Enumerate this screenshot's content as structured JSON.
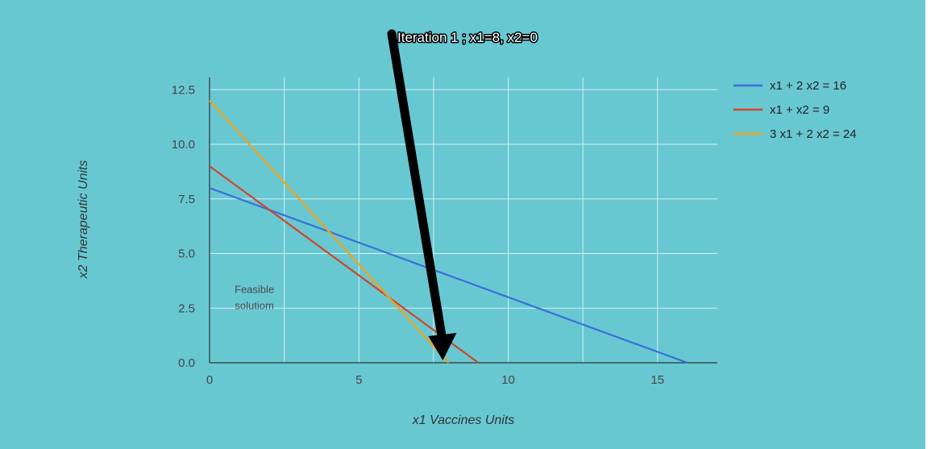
{
  "chart_data": {
    "type": "line",
    "xlabel": "x1 Vaccines Units",
    "ylabel": "x2 Therapeutic Units",
    "xlim": [
      0,
      17
    ],
    "ylim": [
      0,
      13
    ],
    "x_ticks": [
      "0",
      "5",
      "10",
      "15"
    ],
    "y_ticks": [
      "0.0",
      "2.5",
      "5.0",
      "7.5",
      "10.0",
      "12.5"
    ],
    "grid": true,
    "legend_position": "top-right",
    "series": [
      {
        "name": "x1 + 2 x2 = 16",
        "color": "#3a6fd8",
        "points": [
          [
            0,
            8
          ],
          [
            16,
            0
          ]
        ]
      },
      {
        "name": "x1 + x2 = 9",
        "color": "#d0452a",
        "points": [
          [
            0,
            9
          ],
          [
            9,
            0
          ]
        ]
      },
      {
        "name": "3 x1 + 2 x2 = 24",
        "color": "#f0a318",
        "points": [
          [
            0,
            12
          ],
          [
            8,
            0
          ]
        ]
      }
    ],
    "annotations": {
      "feasible_line1": "Feasible",
      "feasible_line2": "solutiom",
      "feasible_point": [
        1.5,
        3.2
      ],
      "iteration_label": "Iteration 1 ; x1=8, x2=0",
      "arrow_target": [
        8,
        0
      ]
    }
  }
}
